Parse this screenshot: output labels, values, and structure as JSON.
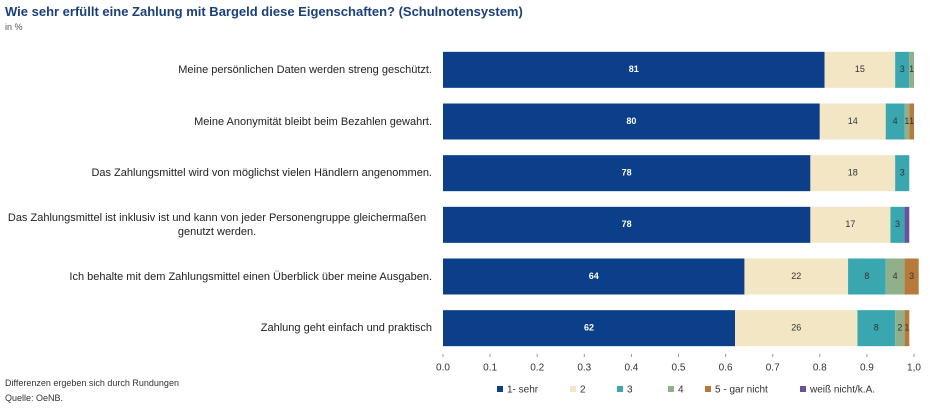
{
  "chart_data": {
    "type": "stacked-bar-horizontal",
    "title": "Wie sehr erfüllt eine Zahlung mit Bargeld diese Eigenschaften? (Schulnotensystem)",
    "subtitle": "in %",
    "notes": [
      "Differenzen ergeben sich durch Rundungen",
      "Quelle: OeNB."
    ],
    "categories": [
      "Meine persönlichen Daten werden streng geschützt.",
      "Meine Anonymität bleibt beim Bezahlen gewahrt.",
      "Das Zahlungsmittel wird von möglichst vielen Händlern angenommen.",
      "Das Zahlungsmittel ist inklusiv ist und kann von jeder Personengruppe gleichermaßen genutzt werden.",
      "Ich behalte mit dem Zahlungsmittel einen Überblick über meine Ausgaben.",
      "Zahlung geht einfach und praktisch"
    ],
    "series": [
      {
        "name": "1- sehr",
        "color": "#0b3f8a",
        "values": [
          0.81,
          0.8,
          0.78,
          0.78,
          0.64,
          0.62
        ],
        "value_labels": [
          "81",
          "80",
          "78",
          "78",
          "64",
          "62"
        ]
      },
      {
        "name": "2",
        "color": "#f2e6c4",
        "values": [
          0.15,
          0.14,
          0.18,
          0.17,
          0.22,
          0.26
        ],
        "value_labels": [
          "15",
          "14",
          "18",
          "17",
          "22",
          "26"
        ]
      },
      {
        "name": "3",
        "color": "#3aa6b0",
        "values": [
          0.03,
          0.04,
          0.03,
          0.03,
          0.08,
          0.08
        ],
        "value_labels": [
          "3",
          "4",
          "3",
          "3",
          "8",
          "8"
        ]
      },
      {
        "name": "4",
        "color": "#8fb08a",
        "values": [
          0.01,
          0.01,
          null,
          null,
          0.04,
          0.02
        ],
        "value_labels": [
          "1",
          "1",
          null,
          null,
          "4",
          "2"
        ]
      },
      {
        "name": "5 - gar nicht",
        "color": "#b87a3a",
        "values": [
          null,
          0.01,
          null,
          null,
          0.03,
          0.01
        ],
        "value_labels": [
          null,
          "1",
          null,
          null,
          "3",
          "1"
        ]
      },
      {
        "name": "weiß nicht/k.A.",
        "color": "#6a4f9a",
        "values": [
          null,
          null,
          null,
          0.01,
          null,
          null
        ],
        "value_labels": [
          null,
          null,
          null,
          null,
          null,
          null
        ]
      }
    ],
    "xlim": [
      0,
      1
    ],
    "xticks": [
      {
        "value": 0,
        "label": "0.0"
      },
      0.1,
      0.2,
      0.3,
      0.4,
      0.5,
      0.6,
      0.7,
      0.8,
      0.9,
      {
        "value": 1,
        "label": "1,0"
      }
    ],
    "grid": false
  }
}
